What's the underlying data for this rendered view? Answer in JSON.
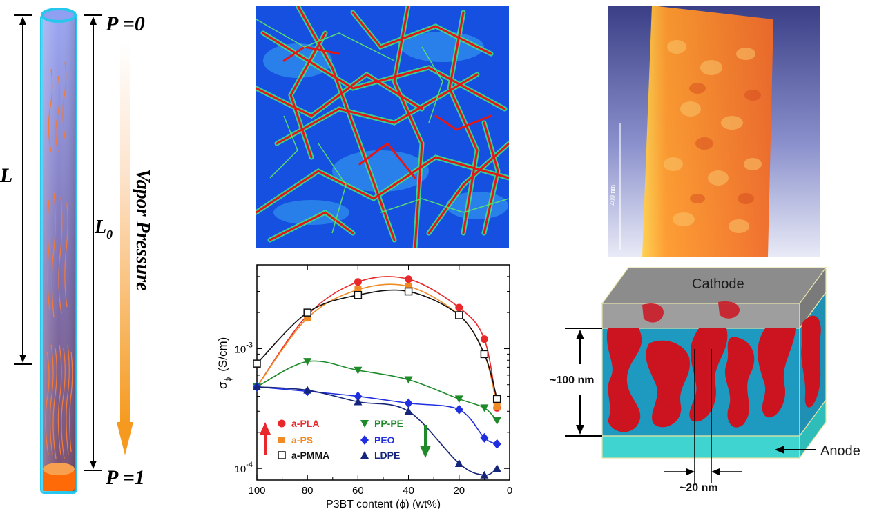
{
  "panel_tube": {
    "label_L": "L",
    "label_L0": "L",
    "label_L0_sub": "0",
    "p_top": "P =0",
    "p_bottom": "P =1",
    "vapor_label": "Vapor Pressure"
  },
  "panel_microscopy": {
    "scale_label": "400 nm"
  },
  "chart_data": {
    "type": "scatter",
    "xlabel": "P3BT content (ϕ) (wt%)",
    "ylabel": "σϕ (S/cm)",
    "ylabel_main": "σ",
    "ylabel_sub": "ϕ",
    "ylabel_units": "(S/cm)",
    "xlim": [
      100,
      0
    ],
    "ylim": [
      8e-05,
      0.005
    ],
    "yscale": "log",
    "x_ticks": [
      100,
      80,
      60,
      40,
      20,
      0
    ],
    "x_tick_labels": [
      "100",
      "80",
      "60",
      "40",
      "20",
      "0"
    ],
    "y_ticks": [
      0.0001,
      0.001
    ],
    "y_tick_labels_base": [
      "10",
      "10"
    ],
    "y_tick_labels_exp": [
      "-4",
      "-3"
    ],
    "legend_position": "bottom-left",
    "series": [
      {
        "name": "a-PLA",
        "color": "#e8282a",
        "marker": "circle-filled",
        "x": [
          100,
          80,
          60,
          40,
          20,
          10,
          5
        ],
        "values": [
          0.00048,
          0.0019,
          0.0036,
          0.0038,
          0.0022,
          0.0012,
          0.00032
        ]
      },
      {
        "name": "a-PS",
        "color": "#f08a24",
        "marker": "square-filled",
        "x": [
          100,
          80,
          60,
          40,
          20,
          10,
          5
        ],
        "values": [
          0.00048,
          0.0018,
          0.0031,
          0.0033,
          0.0019,
          0.0009,
          0.00033
        ]
      },
      {
        "name": "a-PMMA",
        "color": "#111111",
        "marker": "square-open",
        "x": [
          100,
          80,
          60,
          40,
          20,
          10,
          5
        ],
        "values": [
          0.00075,
          0.002,
          0.0028,
          0.003,
          0.0019,
          0.0009,
          0.00038
        ]
      },
      {
        "name": "PP-PE",
        "color": "#1f8a2a",
        "marker": "triangle-down",
        "x": [
          100,
          80,
          60,
          40,
          20,
          10,
          5
        ],
        "values": [
          0.00048,
          0.00078,
          0.00066,
          0.00055,
          0.00038,
          0.00032,
          0.00025
        ]
      },
      {
        "name": "PEO",
        "color": "#1f2ee0",
        "marker": "diamond",
        "x": [
          100,
          80,
          60,
          40,
          20,
          10,
          5
        ],
        "values": [
          0.00048,
          0.00044,
          0.0004,
          0.00035,
          0.00031,
          0.00018,
          0.00016
        ]
      },
      {
        "name": "LDPE",
        "color": "#15257a",
        "marker": "triangle-up",
        "x": [
          100,
          80,
          60,
          40,
          20,
          10,
          5
        ],
        "values": [
          0.00048,
          0.00045,
          0.00036,
          0.0003,
          0.00011,
          8.8e-05,
          0.0001
        ]
      }
    ],
    "trend_arrows": [
      {
        "direction": "up",
        "color": "#e8282a",
        "group": "left"
      },
      {
        "direction": "down",
        "color": "#1f8a2a",
        "group": "right"
      }
    ]
  },
  "panel_device": {
    "cathode": "Cathode",
    "anode": "Anode",
    "thickness": "~100 nm",
    "width": "~20 nm"
  }
}
